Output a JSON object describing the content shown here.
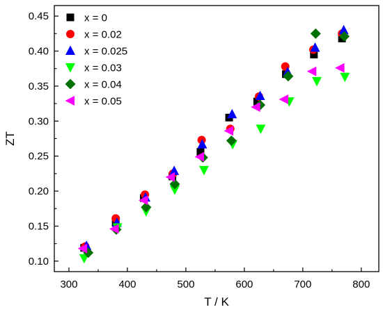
{
  "chart_data": {
    "type": "scatter",
    "xlabel": "T / K",
    "ylabel": "ZT",
    "xlim": [
      275,
      830
    ],
    "ylim": [
      0.085,
      0.465
    ],
    "x_ticks": [
      300,
      400,
      500,
      600,
      700,
      800
    ],
    "y_ticks": [
      0.1,
      0.15,
      0.2,
      0.25,
      0.3,
      0.35,
      0.4,
      0.45
    ],
    "legend_position": "top-left",
    "series": [
      {
        "name": "x = 0",
        "marker": "square",
        "color": "#000000",
        "points": [
          [
            326,
            0.119
          ],
          [
            380,
            0.155
          ],
          [
            428,
            0.19
          ],
          [
            477,
            0.221
          ],
          [
            525,
            0.256
          ],
          [
            574,
            0.305
          ],
          [
            622,
            0.328
          ],
          [
            671,
            0.367
          ],
          [
            719,
            0.395
          ],
          [
            767,
            0.418
          ]
        ]
      },
      {
        "name": "x = 0.02",
        "marker": "circle",
        "color": "#ff0000",
        "points": [
          [
            328,
            0.121
          ],
          [
            380,
            0.161
          ],
          [
            430,
            0.195
          ],
          [
            478,
            0.225
          ],
          [
            527,
            0.273
          ],
          [
            576,
            0.289
          ],
          [
            625,
            0.335
          ],
          [
            670,
            0.378
          ],
          [
            718,
            0.402
          ],
          [
            767,
            0.425
          ]
        ]
      },
      {
        "name": "x = 0.025",
        "marker": "triangle-up",
        "color": "#0000ff",
        "points": [
          [
            330,
            0.122
          ],
          [
            382,
            0.155
          ],
          [
            431,
            0.191
          ],
          [
            480,
            0.229
          ],
          [
            528,
            0.267
          ],
          [
            579,
            0.31
          ],
          [
            627,
            0.336
          ],
          [
            674,
            0.37
          ],
          [
            721,
            0.405
          ],
          [
            770,
            0.43
          ]
        ]
      },
      {
        "name": "x = 0.03",
        "marker": "triangle-down",
        "color": "#00ff00",
        "points": [
          [
            326,
            0.104
          ],
          [
            383,
            0.148
          ],
          [
            432,
            0.171
          ],
          [
            481,
            0.202
          ],
          [
            531,
            0.23
          ],
          [
            580,
            0.267
          ],
          [
            628,
            0.289
          ],
          [
            677,
            0.328
          ],
          [
            724,
            0.357
          ],
          [
            772,
            0.363
          ]
        ]
      },
      {
        "name": "x = 0.04",
        "marker": "diamond",
        "color": "#007000",
        "points": [
          [
            333,
            0.112
          ],
          [
            381,
            0.145
          ],
          [
            432,
            0.177
          ],
          [
            481,
            0.21
          ],
          [
            529,
            0.248
          ],
          [
            578,
            0.272
          ],
          [
            627,
            0.323
          ],
          [
            675,
            0.364
          ],
          [
            722,
            0.425
          ],
          [
            771,
            0.421
          ]
        ]
      },
      {
        "name": "x = 0.05",
        "marker": "triangle-left",
        "color": "#ff00ff",
        "points": [
          [
            324,
            0.118
          ],
          [
            378,
            0.146
          ],
          [
            428,
            0.187
          ],
          [
            474,
            0.22
          ],
          [
            524,
            0.249
          ],
          [
            574,
            0.286
          ],
          [
            620,
            0.32
          ],
          [
            668,
            0.331
          ],
          [
            716,
            0.371
          ],
          [
            764,
            0.376
          ]
        ]
      }
    ]
  }
}
